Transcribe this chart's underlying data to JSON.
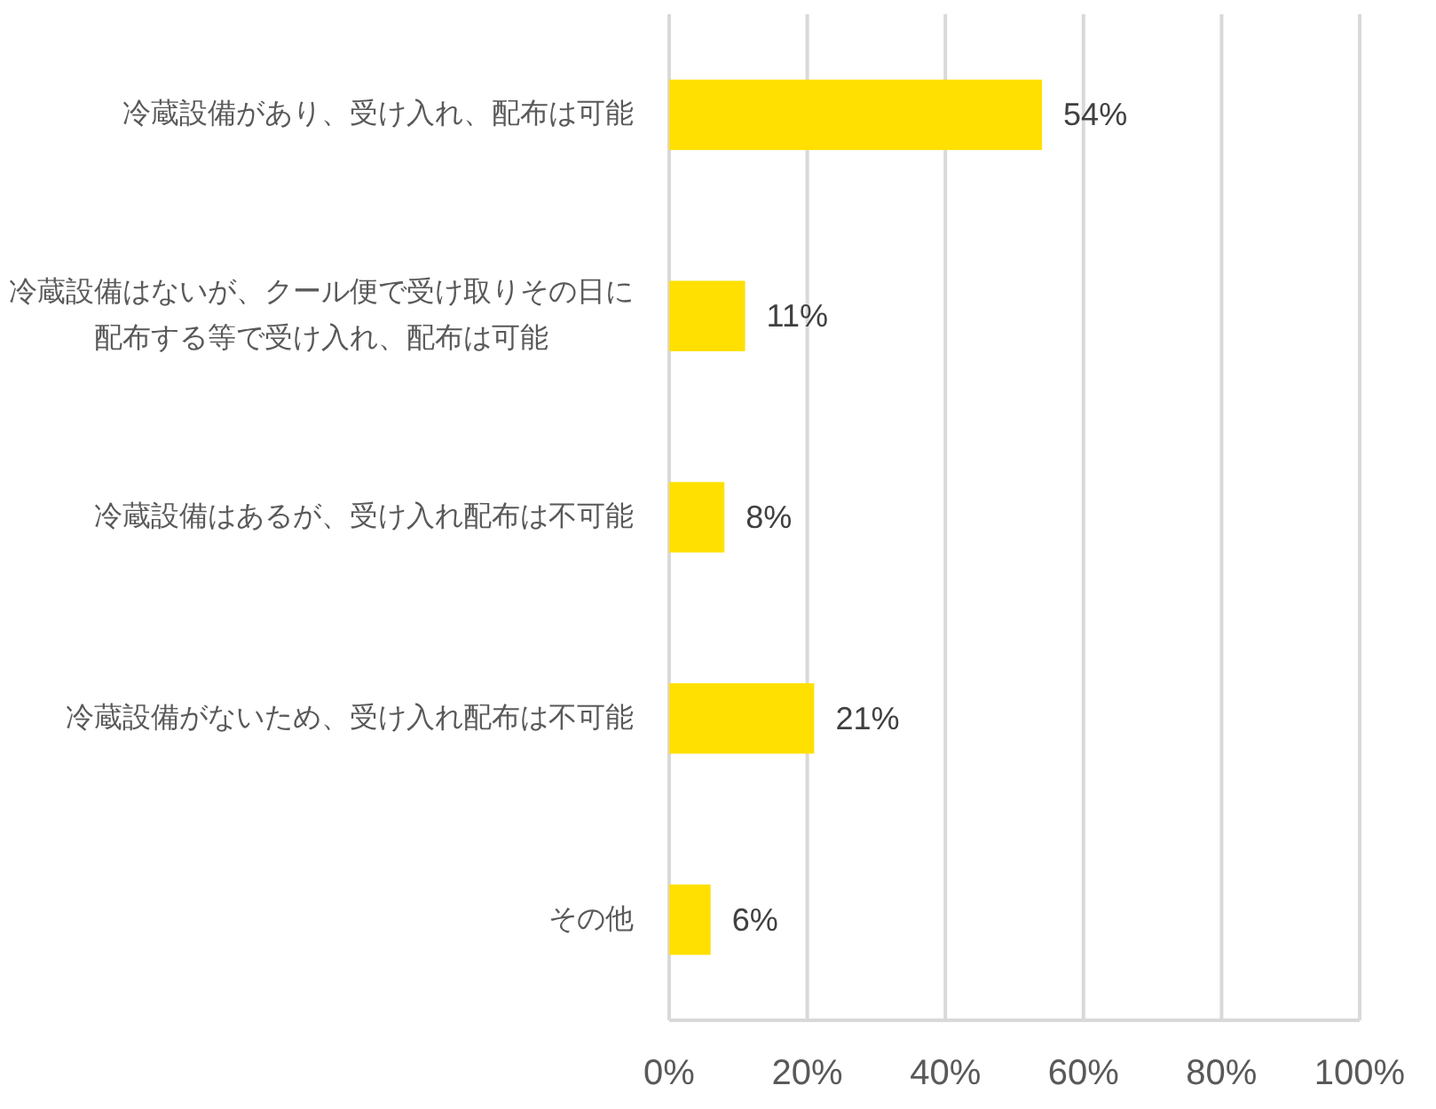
{
  "chart_data": {
    "type": "bar",
    "orientation": "horizontal",
    "categories": [
      "冷蔵設備があり、受け入れ、配布は可能",
      "冷蔵設備はないが、クール便で受け取りその日に配布する等で受け入れ、配布は可能",
      "冷蔵設備はあるが、受け入れ配布は不可能",
      "冷蔵設備がないため、受け入れ配布は不可能",
      "その他"
    ],
    "values": [
      54,
      11,
      8,
      21,
      6
    ],
    "color": "#ffe000",
    "value_labels": [
      "54%",
      "11%",
      "8%",
      "21%",
      "6%"
    ],
    "xlim": [
      0,
      100
    ],
    "xticks": [
      {
        "value": 0,
        "label": "0%"
      },
      {
        "value": 20,
        "label": "20%"
      },
      {
        "value": 40,
        "label": "40%"
      },
      {
        "value": 60,
        "label": "60%"
      },
      {
        "value": 80,
        "label": "80%"
      },
      {
        "value": 100,
        "label": "100%"
      }
    ],
    "grid": "x"
  }
}
